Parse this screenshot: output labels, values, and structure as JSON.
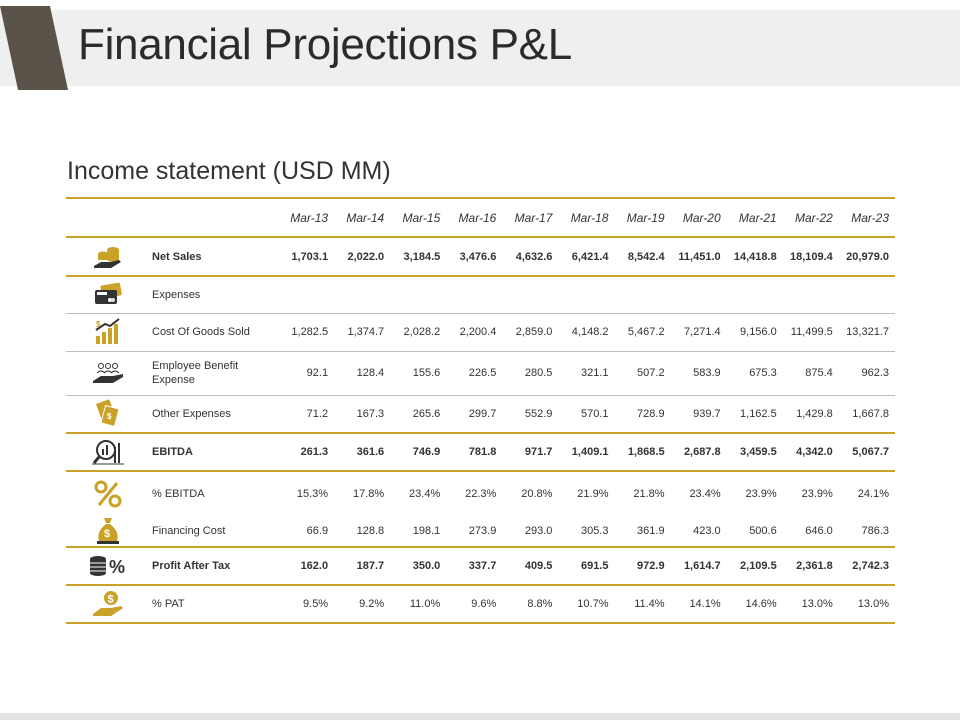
{
  "page": {
    "title": "Financial Projections P&L",
    "section_title": "Income statement (USD MM)",
    "colors": {
      "accent_gold": "#c9a227",
      "dark_accent": "#5a5349",
      "band_gray": "#efefef"
    }
  },
  "table": {
    "years": [
      "Mar-13",
      "Mar-14",
      "Mar-15",
      "Mar-16",
      "Mar-17",
      "Mar-18",
      "Mar-19",
      "Mar-20",
      "Mar-21",
      "Mar-22",
      "Mar-23"
    ],
    "rows": [
      {
        "label": "Net Sales",
        "icon": "coins-hand-icon",
        "bold": true,
        "values": [
          "1,703.1",
          "2,022.0",
          "3,184.5",
          "3,476.6",
          "4,632.6",
          "6,421.4",
          "8,542.4",
          "11,451.0",
          "14,418.8",
          "18,109.4",
          "20,979.0"
        ]
      },
      {
        "label": "Expenses",
        "icon": "credit-card-icon",
        "bold": false,
        "values": [
          "",
          "",
          "",
          "",
          "",
          "",
          "",
          "",
          "",
          "",
          ""
        ]
      },
      {
        "label": "Cost Of Goods Sold",
        "icon": "dollar-growth-chart-icon",
        "bold": false,
        "values": [
          "1,282.5",
          "1,374.7",
          "2,028.2",
          "2,200.4",
          "2,859.0",
          "4,148.2",
          "5,467.2",
          "7,271.4",
          "9,156.0",
          "11,499.5",
          "13,321.7"
        ]
      },
      {
        "label": "Employee Benefit Expense",
        "icon": "people-hand-icon",
        "bold": false,
        "values": [
          "92.1",
          "128.4",
          "155.6",
          "226.5",
          "280.5",
          "321.1",
          "507.2",
          "583.9",
          "675.3",
          "875.4",
          "962.3"
        ]
      },
      {
        "label": "Other Expenses",
        "icon": "money-bills-icon",
        "bold": false,
        "values": [
          "71.2",
          "167.3",
          "265.6",
          "299.7",
          "552.9",
          "570.1",
          "728.9",
          "939.7",
          "1,162.5",
          "1,429.8",
          "1,667.8"
        ]
      },
      {
        "label": "EBITDA",
        "icon": "magnifier-chart-icon",
        "bold": true,
        "values": [
          "261.3",
          "361.6",
          "746.9",
          "781.8",
          "971.7",
          "1,409.1",
          "1,868.5",
          "2,687.8",
          "3,459.5",
          "4,342.0",
          "5,067.7"
        ]
      },
      {
        "label": "% EBITDA",
        "icon": "percent-icon",
        "bold": false,
        "values": [
          "15.3%",
          "17.8%",
          "23.4%",
          "22.3%",
          "20.8%",
          "21.9%",
          "21.8%",
          "23.4%",
          "23.9%",
          "23.9%",
          "24.1%"
        ]
      },
      {
        "label": "Financing Cost",
        "icon": "money-bag-icon",
        "bold": false,
        "values": [
          "66.9",
          "128.8",
          "198.1",
          "273.9",
          "293.0",
          "305.3",
          "361.9",
          "423.0",
          "500.6",
          "646.0",
          "786.3"
        ]
      },
      {
        "label": "Profit After Tax",
        "icon": "coins-percent-icon",
        "bold": true,
        "values": [
          "162.0",
          "187.7",
          "350.0",
          "337.7",
          "409.5",
          "691.5",
          "972.9",
          "1,614.7",
          "2,109.5",
          "2,361.8",
          "2,742.3"
        ]
      },
      {
        "label": "% PAT",
        "icon": "dollar-hand-icon",
        "bold": false,
        "values": [
          "9.5%",
          "9.2%",
          "11.0%",
          "9.6%",
          "8.8%",
          "10.7%",
          "11.4%",
          "14.1%",
          "14.6%",
          "13.0%",
          "13.0%"
        ]
      }
    ]
  }
}
